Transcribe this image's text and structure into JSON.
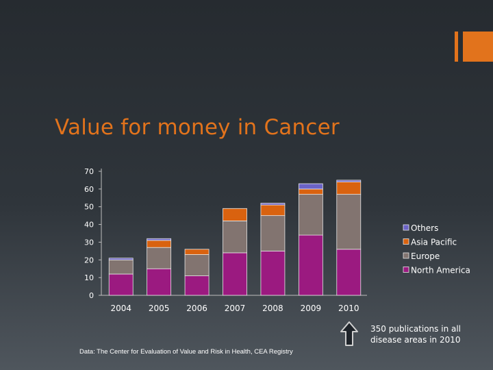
{
  "slide": {
    "title": "Value for money in Cancer",
    "source": "Data: The Center for Evaluation of Value and Risk in Health, CEA Registry",
    "accent_color": "#e2731c"
  },
  "annotation": {
    "lines": [
      "350 publications in all",
      "disease areas in 2010"
    ],
    "arrow_icon": "up-arrow-icon"
  },
  "chart_data": {
    "type": "bar",
    "stacked": true,
    "title": "",
    "xlabel": "",
    "ylabel": "",
    "ylim": [
      0,
      70
    ],
    "yticks": [
      0,
      10,
      20,
      30,
      40,
      50,
      60,
      70
    ],
    "grid": false,
    "legend_position": "right",
    "categories": [
      "2004",
      "2005",
      "2006",
      "2007",
      "2008",
      "2009",
      "2010"
    ],
    "series": [
      {
        "name": "North America",
        "color": "#9b1a80",
        "values": [
          12,
          15,
          11,
          24,
          25,
          34,
          26
        ]
      },
      {
        "name": "Europe",
        "color": "#827470",
        "values": [
          8,
          12,
          12,
          18,
          20,
          23,
          31
        ]
      },
      {
        "name": "Asia Pacific",
        "color": "#d9620f",
        "values": [
          0,
          4,
          3,
          7,
          6,
          3,
          7
        ]
      },
      {
        "name": "Others",
        "color": "#6b63c6",
        "values": [
          1,
          1,
          0,
          0,
          1,
          3,
          1
        ]
      }
    ]
  }
}
